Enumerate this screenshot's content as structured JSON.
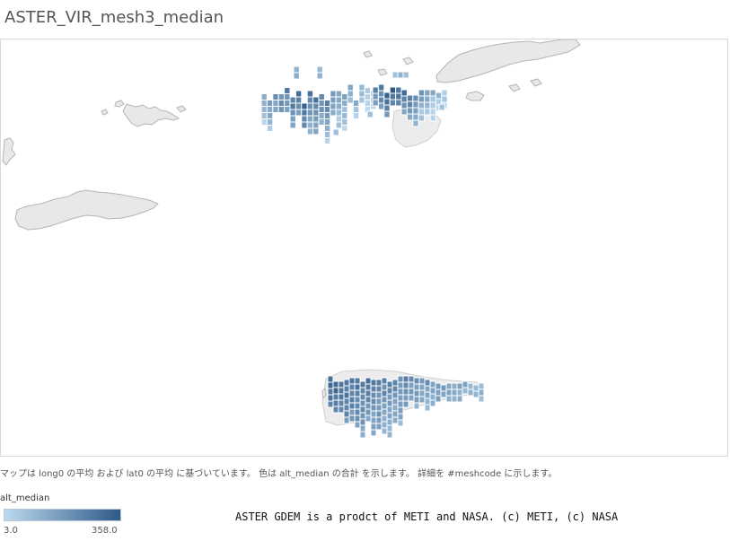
{
  "title": "ASTER_VIR_mesh3_median",
  "caption": "マップは long0 の平均 および lat0 の平均 に基づいています。 色は alt_median の合計 を示します。 詳細を #meshcode に示します。",
  "legend": {
    "title": "alt_median",
    "min_label": "3.0",
    "max_label": "358.0",
    "color_low": "#bcd9ef",
    "color_high": "#2e5a87"
  },
  "credit": "ASTER GDEM is a prodct of METI and NASA. (c) METI, (c) NASA",
  "colors": {
    "land": "#e8e8e8",
    "coast": "#b5b5b5",
    "frame_border": "#d9d9d9"
  }
}
